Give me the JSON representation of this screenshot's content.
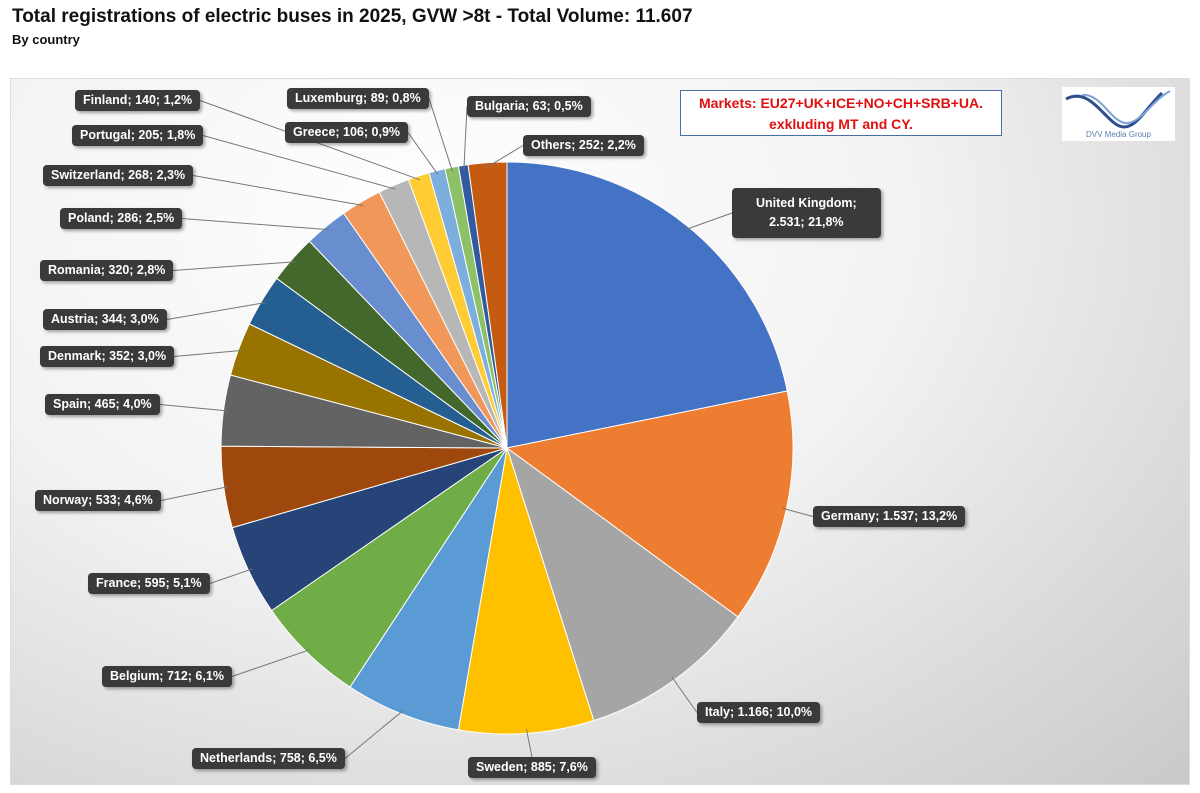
{
  "chart_data": {
    "type": "pie",
    "title": "Total registrations of electric buses in 2025, GVW >8t - Total Volume: 11.607",
    "subtitle": "By country",
    "note": [
      "Markets: EU27+UK+ICE+NO+CH+SRB+UA.",
      "exkluding MT and CY."
    ],
    "logo_text": "DVV Media Group",
    "start": "12 o'clock, clockwise",
    "slices": [
      {
        "name": "United Kingdom",
        "value": 2531,
        "label": "United Kingdom;\n2.531; 21,8%",
        "color": "#4472C4"
      },
      {
        "name": "Germany",
        "value": 1537,
        "label": "Germany; 1.537; 13,2%",
        "color": "#ED7D31"
      },
      {
        "name": "Italy",
        "value": 1166,
        "label": "Italy; 1.166; 10,0%",
        "color": "#A5A5A5"
      },
      {
        "name": "Sweden",
        "value": 885,
        "label": "Sweden; 885; 7,6%",
        "color": "#FFC000"
      },
      {
        "name": "Netherlands",
        "value": 758,
        "label": "Netherlands; 758; 6,5%",
        "color": "#5B9BD5"
      },
      {
        "name": "Belgium",
        "value": 712,
        "label": "Belgium; 712; 6,1%",
        "color": "#70AD47"
      },
      {
        "name": "France",
        "value": 595,
        "label": "France; 595; 5,1%",
        "color": "#264478"
      },
      {
        "name": "Norway",
        "value": 533,
        "label": "Norway; 533; 4,6%",
        "color": "#9E480E"
      },
      {
        "name": "Spain",
        "value": 465,
        "label": "Spain; 465; 4,0%",
        "color": "#636363"
      },
      {
        "name": "Denmark",
        "value": 352,
        "label": "Denmark; 352; 3,0%",
        "color": "#997300"
      },
      {
        "name": "Austria",
        "value": 344,
        "label": "Austria; 344; 3,0%",
        "color": "#255E91"
      },
      {
        "name": "Romania",
        "value": 320,
        "label": "Romania; 320; 2,8%",
        "color": "#43682B"
      },
      {
        "name": "Poland",
        "value": 286,
        "label": "Poland; 286; 2,5%",
        "color": "#698ED0"
      },
      {
        "name": "Switzerland",
        "value": 268,
        "label": "Switzerland; 268; 2,3%",
        "color": "#F1975A"
      },
      {
        "name": "Portugal",
        "value": 205,
        "label": "Portugal; 205; 1,8%",
        "color": "#B7B7B7"
      },
      {
        "name": "Finland",
        "value": 140,
        "label": "Finland; 140; 1,2%",
        "color": "#FFCD33"
      },
      {
        "name": "Greece",
        "value": 106,
        "label": "Greece; 106; 0,9%",
        "color": "#7CAFDD"
      },
      {
        "name": "Luxemburg",
        "value": 89,
        "label": "Luxemburg; 89; 0,8%",
        "color": "#8CC168"
      },
      {
        "name": "Bulgaria",
        "value": 63,
        "label": "Bulgaria; 63; 0,5%",
        "color": "#335AA1"
      },
      {
        "name": "Others",
        "value": 252,
        "label": "Others; 252; 2,2%",
        "color": "#C55A11"
      }
    ]
  }
}
